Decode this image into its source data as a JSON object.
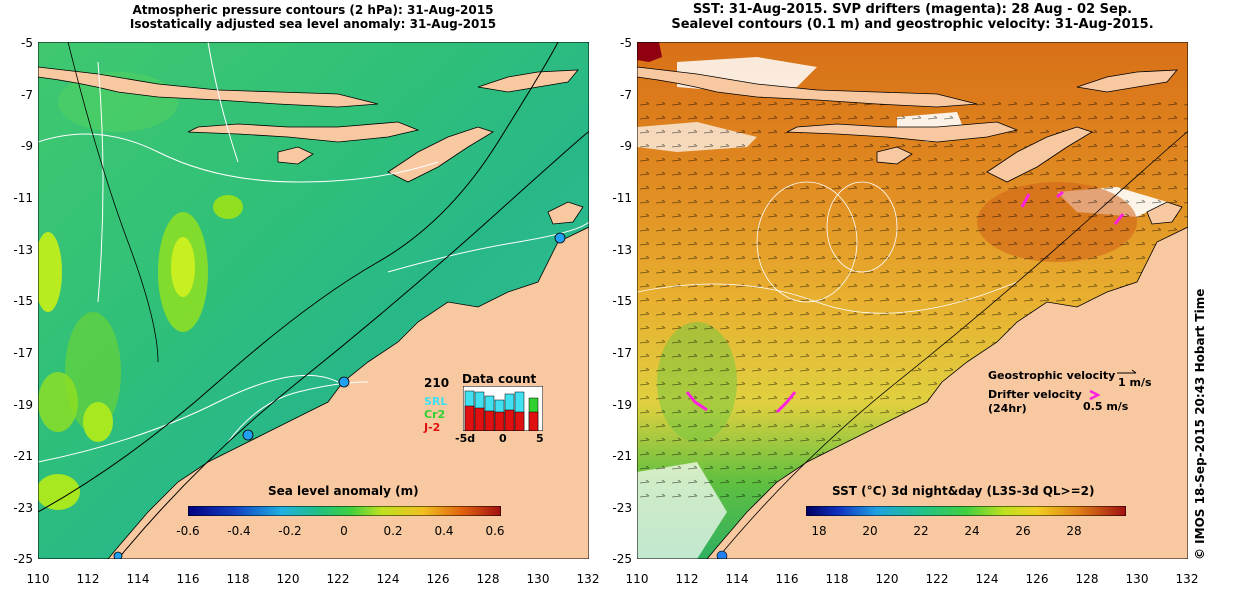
{
  "left_map": {
    "title_line1": "Atmospheric pressure contours (2 hPa): 31-Aug-2015",
    "title_line2": "Isostatically adjusted sea level anomaly: 31-Aug-2015",
    "y_ticks": [
      "-5",
      "-7",
      "-9",
      "-11",
      "-13",
      "-15",
      "-17",
      "-19",
      "-21",
      "-23",
      "-25"
    ],
    "x_ticks": [
      "110",
      "112",
      "114",
      "116",
      "118",
      "120",
      "122",
      "124",
      "126",
      "128",
      "130",
      "132"
    ],
    "colorbar": {
      "label": "Sea level anomaly (m)",
      "ticks": [
        "-0.6",
        "-0.4",
        "-0.2",
        "0",
        "0.2",
        "0.4",
        "0.6"
      ],
      "range": [
        -0.6,
        0.6
      ]
    },
    "data_count": {
      "title": "Data count",
      "max_label": "210",
      "series": [
        "SRL",
        "Cr2",
        "J-2"
      ],
      "series_colors": [
        "#40e0f0",
        "#30d030",
        "#e01010"
      ],
      "x_ticks": [
        "-5d",
        "0",
        "5"
      ]
    }
  },
  "right_map": {
    "title_line1": "SST: 31-Aug-2015. SVP drifters (magenta): 28 Aug - 02 Sep.",
    "title_line2": "Sealevel contours (0.1 m) and geostrophic velocity: 31-Aug-2015.",
    "y_ticks": [
      "-5",
      "-7",
      "-9",
      "-11",
      "-13",
      "-15",
      "-17",
      "-19",
      "-21",
      "-23",
      "-25"
    ],
    "x_ticks": [
      "110",
      "112",
      "114",
      "116",
      "118",
      "120",
      "122",
      "124",
      "126",
      "128",
      "130",
      "132"
    ],
    "colorbar": {
      "label": "SST (°C) 3d night&day (L3S-3d QL>=2)",
      "ticks": [
        "18",
        "20",
        "22",
        "24",
        "26",
        "28"
      ],
      "range": [
        17,
        29.5
      ]
    },
    "legend": {
      "geostrophic_label": "Geostrophic velocity",
      "geostrophic_scale": "1 m/s",
      "drifter_label_line1": "Drifter velocity",
      "drifter_label_line2": "(24hr)",
      "drifter_scale": "0.5 m/s"
    }
  },
  "credit": "© IMOS 18-Sep-2015 20:43 Hobart Time",
  "colors": {
    "land": "#f8c8a0",
    "ocean_mid": "#30c080",
    "ocean_green": "#50d040",
    "sst_orange": "#e89020",
    "sst_yellow": "#e8d040",
    "drifter": "#ff20e0"
  }
}
